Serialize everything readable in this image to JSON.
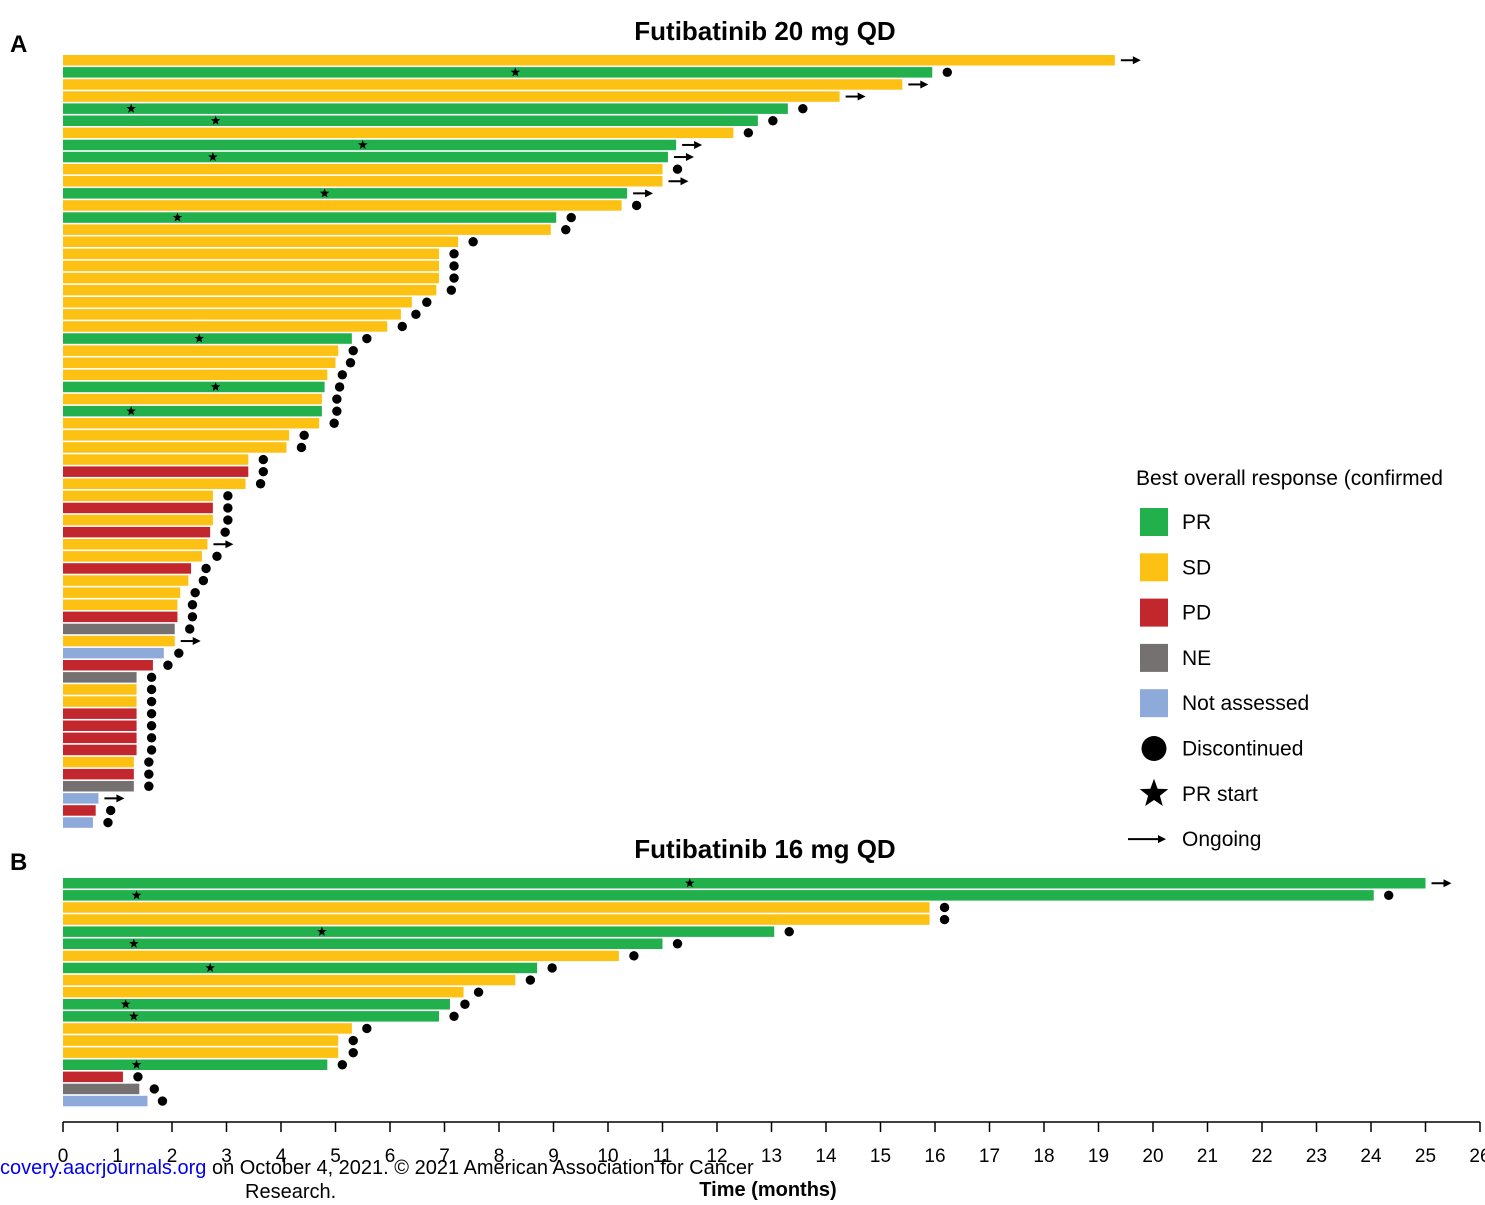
{
  "chart_data": [
    {
      "type": "bar",
      "orientation": "horizontal",
      "panel_label": "A",
      "title": "Futibatinib 20 mg QD",
      "bars": [
        {
          "duration": 19.3,
          "response": "SD",
          "ongoing": true
        },
        {
          "duration": 15.95,
          "response": "PR",
          "pr_start": 8.3,
          "discontinued": true
        },
        {
          "duration": 15.4,
          "response": "SD",
          "ongoing": true
        },
        {
          "duration": 14.25,
          "response": "SD",
          "ongoing": true
        },
        {
          "duration": 13.3,
          "response": "PR",
          "pr_start": 1.25,
          "discontinued": true
        },
        {
          "duration": 12.75,
          "response": "PR",
          "pr_start": 2.8,
          "discontinued": true
        },
        {
          "duration": 12.3,
          "response": "SD",
          "discontinued": true
        },
        {
          "duration": 11.25,
          "response": "PR",
          "pr_start": 5.5,
          "ongoing": true
        },
        {
          "duration": 11.1,
          "response": "PR",
          "pr_start": 2.75,
          "ongoing": true
        },
        {
          "duration": 11.0,
          "response": "SD",
          "discontinued": true
        },
        {
          "duration": 11.0,
          "response": "SD",
          "ongoing": true
        },
        {
          "duration": 10.35,
          "response": "PR",
          "pr_start": 4.8,
          "ongoing": true
        },
        {
          "duration": 10.25,
          "response": "SD",
          "discontinued": true
        },
        {
          "duration": 9.05,
          "response": "PR",
          "pr_start": 2.1,
          "discontinued": true
        },
        {
          "duration": 8.95,
          "response": "SD",
          "discontinued": true
        },
        {
          "duration": 7.25,
          "response": "SD",
          "discontinued": true
        },
        {
          "duration": 6.9,
          "response": "SD",
          "discontinued": true
        },
        {
          "duration": 6.9,
          "response": "SD",
          "discontinued": true
        },
        {
          "duration": 6.9,
          "response": "SD",
          "discontinued": true
        },
        {
          "duration": 6.85,
          "response": "SD",
          "discontinued": true
        },
        {
          "duration": 6.4,
          "response": "SD",
          "discontinued": true
        },
        {
          "duration": 6.2,
          "response": "SD",
          "discontinued": true
        },
        {
          "duration": 5.95,
          "response": "SD",
          "discontinued": true
        },
        {
          "duration": 5.3,
          "response": "PR",
          "pr_start": 2.5,
          "discontinued": true
        },
        {
          "duration": 5.05,
          "response": "SD",
          "discontinued": true
        },
        {
          "duration": 5.0,
          "response": "SD",
          "discontinued": true
        },
        {
          "duration": 4.85,
          "response": "SD",
          "discontinued": true
        },
        {
          "duration": 4.8,
          "response": "PR",
          "pr_start": 2.8,
          "discontinued": true
        },
        {
          "duration": 4.75,
          "response": "SD",
          "discontinued": true
        },
        {
          "duration": 4.75,
          "response": "PR",
          "pr_start": 1.25,
          "discontinued": true
        },
        {
          "duration": 4.7,
          "response": "SD",
          "discontinued": true
        },
        {
          "duration": 4.15,
          "response": "SD",
          "discontinued": true
        },
        {
          "duration": 4.1,
          "response": "SD",
          "discontinued": true
        },
        {
          "duration": 3.4,
          "response": "SD",
          "discontinued": true
        },
        {
          "duration": 3.4,
          "response": "PD",
          "discontinued": true
        },
        {
          "duration": 3.35,
          "response": "SD",
          "discontinued": true
        },
        {
          "duration": 2.75,
          "response": "SD",
          "discontinued": true
        },
        {
          "duration": 2.75,
          "response": "PD",
          "discontinued": true
        },
        {
          "duration": 2.75,
          "response": "SD",
          "discontinued": true
        },
        {
          "duration": 2.7,
          "response": "PD",
          "discontinued": true
        },
        {
          "duration": 2.65,
          "response": "SD",
          "ongoing": true
        },
        {
          "duration": 2.55,
          "response": "SD",
          "discontinued": true
        },
        {
          "duration": 2.35,
          "response": "PD",
          "discontinued": true
        },
        {
          "duration": 2.3,
          "response": "SD",
          "discontinued": true
        },
        {
          "duration": 2.15,
          "response": "SD",
          "discontinued": true
        },
        {
          "duration": 2.1,
          "response": "SD",
          "discontinued": true
        },
        {
          "duration": 2.1,
          "response": "PD",
          "discontinued": true
        },
        {
          "duration": 2.05,
          "response": "NE",
          "discontinued": true
        },
        {
          "duration": 2.05,
          "response": "SD",
          "ongoing": true
        },
        {
          "duration": 1.85,
          "response": "Not assessed",
          "discontinued": true
        },
        {
          "duration": 1.65,
          "response": "PD",
          "discontinued": true
        },
        {
          "duration": 1.35,
          "response": "NE",
          "discontinued": true
        },
        {
          "duration": 1.35,
          "response": "SD",
          "discontinued": true
        },
        {
          "duration": 1.35,
          "response": "SD",
          "discontinued": true
        },
        {
          "duration": 1.35,
          "response": "PD",
          "discontinued": true
        },
        {
          "duration": 1.35,
          "response": "PD",
          "discontinued": true
        },
        {
          "duration": 1.35,
          "response": "PD",
          "discontinued": true
        },
        {
          "duration": 1.35,
          "response": "PD",
          "discontinued": true
        },
        {
          "duration": 1.3,
          "response": "SD",
          "discontinued": true
        },
        {
          "duration": 1.3,
          "response": "PD",
          "discontinued": true
        },
        {
          "duration": 1.3,
          "response": "NE",
          "discontinued": true
        },
        {
          "duration": 0.65,
          "response": "Not assessed",
          "ongoing": true
        },
        {
          "duration": 0.6,
          "response": "PD",
          "discontinued": true
        },
        {
          "duration": 0.55,
          "response": "Not assessed",
          "discontinued": true
        }
      ]
    },
    {
      "type": "bar",
      "orientation": "horizontal",
      "panel_label": "B",
      "title": "Futibatinib 16 mg QD",
      "bars": [
        {
          "duration": 25.0,
          "response": "PR",
          "pr_start": 11.5,
          "ongoing": true
        },
        {
          "duration": 24.05,
          "response": "PR",
          "pr_start": 1.35,
          "discontinued": true
        },
        {
          "duration": 15.9,
          "response": "SD",
          "discontinued": true
        },
        {
          "duration": 15.9,
          "response": "SD",
          "discontinued": true
        },
        {
          "duration": 13.05,
          "response": "PR",
          "pr_start": 4.75,
          "discontinued": true
        },
        {
          "duration": 11.0,
          "response": "PR",
          "pr_start": 1.3,
          "discontinued": true
        },
        {
          "duration": 10.2,
          "response": "SD",
          "discontinued": true
        },
        {
          "duration": 8.7,
          "response": "PR",
          "pr_start": 2.7,
          "discontinued": true
        },
        {
          "duration": 8.3,
          "response": "SD",
          "discontinued": true
        },
        {
          "duration": 7.35,
          "response": "SD",
          "discontinued": true
        },
        {
          "duration": 7.1,
          "response": "PR",
          "pr_start": 1.15,
          "discontinued": true
        },
        {
          "duration": 6.9,
          "response": "PR",
          "pr_start": 1.3,
          "discontinued": true
        },
        {
          "duration": 5.3,
          "response": "SD",
          "discontinued": true
        },
        {
          "duration": 5.05,
          "response": "SD",
          "discontinued": true
        },
        {
          "duration": 5.05,
          "response": "SD",
          "discontinued": true
        },
        {
          "duration": 4.85,
          "response": "PR",
          "pr_start": 1.35,
          "discontinued": true
        },
        {
          "duration": 1.1,
          "response": "PD",
          "discontinued": true
        },
        {
          "duration": 1.4,
          "response": "NE",
          "discontinued": true
        },
        {
          "duration": 1.55,
          "response": "Not assessed",
          "discontinued": true
        }
      ]
    }
  ],
  "x_axis": {
    "title": "Time (months)",
    "range": [
      0,
      26
    ],
    "ticks": [
      "0",
      "1",
      "2",
      "3",
      "4",
      "5",
      "6",
      "7",
      "8",
      "9",
      "10",
      "11",
      "12",
      "13",
      "14",
      "15",
      "16",
      "17",
      "18",
      "19",
      "20",
      "21",
      "22",
      "23",
      "24",
      "25",
      "26"
    ]
  },
  "legend": {
    "title": "Best overall response (confirmed",
    "placement": "right",
    "items": [
      {
        "key": "PR",
        "label": "PR",
        "symbol": "square",
        "color": "#21b04b"
      },
      {
        "key": "SD",
        "label": "SD",
        "symbol": "square",
        "color": "#fcc113"
      },
      {
        "key": "PD",
        "label": "PD",
        "symbol": "square",
        "color": "#c1272d"
      },
      {
        "key": "NE",
        "label": "NE",
        "symbol": "square",
        "color": "#757171"
      },
      {
        "key": "Not assessed",
        "label": "Not assessed",
        "symbol": "square",
        "color": "#8eaadb"
      },
      {
        "key": "discontinued",
        "label": "Discontinued",
        "symbol": "circle"
      },
      {
        "key": "pr_start",
        "label": "PR start",
        "symbol": "star"
      },
      {
        "key": "ongoing",
        "label": "Ongoing",
        "symbol": "arrow"
      }
    ]
  },
  "footer": {
    "link_text": "covery.aacrjournals.org",
    "line1_rest": " on October 4, 2021. © 2021 American Association for Cancer",
    "line2": "Research."
  }
}
